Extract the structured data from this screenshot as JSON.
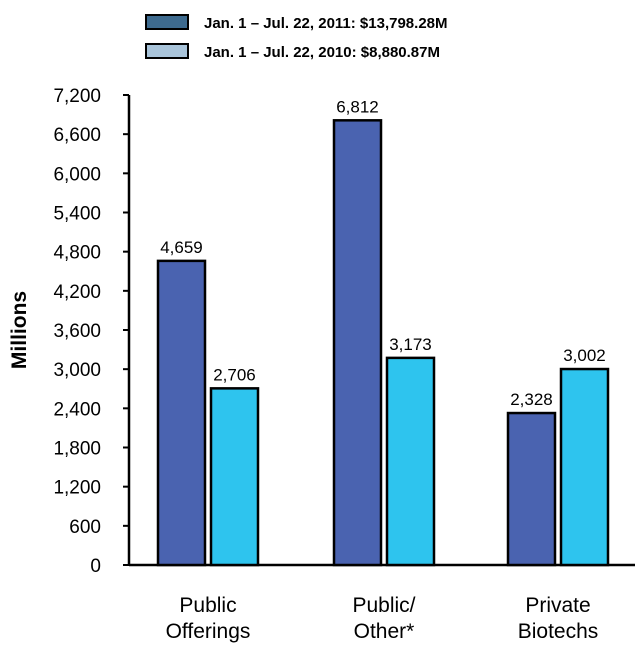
{
  "chart_data": {
    "type": "bar",
    "categories": [
      [
        "Public",
        "Offerings"
      ],
      [
        "Public/",
        "Other*"
      ],
      [
        "Private",
        "Biotechs"
      ]
    ],
    "series": [
      {
        "name": "Jan. 1 –  Jul. 22, 2011: $13,798.28M",
        "values": [
          4659,
          6812,
          2328
        ],
        "labels": [
          "4,659",
          "6,812",
          "2,328"
        ],
        "color": "#4A63B0",
        "legend_color": "#3E6B8F"
      },
      {
        "name": "Jan. 1 –  Jul. 22, 2010: $8,880.87M",
        "values": [
          2706,
          3173,
          3002
        ],
        "labels": [
          "2,706",
          "3,173",
          "3,002"
        ],
        "color": "#2EC4EE",
        "legend_color": "#A9C4DA"
      }
    ],
    "ylabel": "Millions",
    "xlabel": "",
    "ylim": [
      0,
      7200
    ],
    "yticks": [
      0,
      600,
      1200,
      1800,
      2400,
      3000,
      3600,
      4200,
      4800,
      5400,
      6000,
      6600,
      7200
    ],
    "ytick_labels": [
      "0",
      "600",
      "1,200",
      "1,800",
      "2,400",
      "3,000",
      "3,600",
      "4,200",
      "4,800",
      "5,400",
      "6,000",
      "6,600",
      "7,200"
    ],
    "grid": false,
    "legend_position": "top-center"
  }
}
